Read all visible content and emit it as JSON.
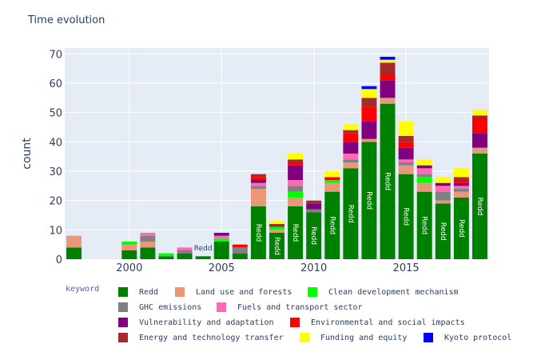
{
  "chart_data": {
    "type": "bar",
    "title": "Time evolution",
    "xlabel": "",
    "ylabel": "count",
    "ylim": [
      0,
      72
    ],
    "xlim": [
      1996.5,
      2019.5
    ],
    "yticks": [
      0,
      10,
      20,
      30,
      40,
      50,
      60,
      70
    ],
    "xticks": [
      2000,
      2005,
      2010,
      2015
    ],
    "grid": true,
    "barmode": "stack",
    "x": [
      1997,
      1998,
      1999,
      2000,
      2001,
      2002,
      2003,
      2004,
      2005,
      2006,
      2007,
      2008,
      2009,
      2010,
      2011,
      2012,
      2013,
      2014,
      2015,
      2016,
      2017,
      2018,
      2019
    ],
    "series": [
      {
        "name": "Redd",
        "color": "#008000",
        "values": [
          4,
          0,
          0,
          3,
          4,
          1,
          2,
          1,
          6,
          2,
          18,
          9,
          18,
          16,
          23,
          31,
          40,
          53,
          29,
          23,
          19,
          21,
          36
        ]
      },
      {
        "name": "Land use and forests",
        "color": "#E9967A",
        "values": [
          4,
          0,
          0,
          2,
          2,
          0,
          0,
          0,
          0,
          0,
          6,
          1,
          3,
          0,
          3,
          2,
          1,
          2,
          3,
          3,
          1,
          2,
          2
        ]
      },
      {
        "name": "Clean development mechanism",
        "color": "#00FF00",
        "values": [
          0,
          0,
          0,
          1,
          0,
          1,
          0,
          0,
          1,
          0,
          0,
          1,
          2,
          0,
          1,
          0,
          0,
          0,
          0,
          2,
          0,
          0,
          0
        ]
      },
      {
        "name": "GHC emissions",
        "color": "#808080",
        "values": [
          0,
          0,
          0,
          0,
          2,
          0,
          1,
          0,
          0,
          2,
          1,
          0,
          2,
          1,
          0,
          1,
          0,
          0,
          1,
          1,
          3,
          1,
          0
        ]
      },
      {
        "name": "Fuels and transport sector",
        "color": "#FF69B4",
        "values": [
          0,
          0,
          0,
          0,
          1,
          0,
          1,
          0,
          1,
          0,
          1,
          0,
          2,
          0,
          0,
          2,
          0,
          0,
          1,
          2,
          2,
          1,
          0
        ]
      },
      {
        "name": "Vulnerability and adaptation",
        "color": "#800080",
        "values": [
          0,
          0,
          0,
          0,
          0,
          0,
          0,
          0,
          1,
          0,
          1,
          0,
          5,
          2,
          0,
          4,
          6,
          6,
          4,
          1,
          1,
          1,
          5
        ]
      },
      {
        "name": "Environmental and social impacts",
        "color": "#FF0000",
        "values": [
          0,
          0,
          0,
          0,
          0,
          0,
          0,
          0,
          0,
          1,
          1,
          0,
          1,
          0,
          1,
          3,
          5,
          2,
          2,
          0,
          0,
          1,
          5
        ]
      },
      {
        "name": "Energy and technology transfer",
        "color": "#A52A2A",
        "values": [
          0,
          0,
          0,
          0,
          0,
          0,
          0,
          0,
          0,
          0,
          1,
          1,
          1,
          1,
          0,
          1,
          3,
          4,
          2,
          0,
          0,
          1,
          1
        ]
      },
      {
        "name": "Funding and equity",
        "color": "#FFFF00",
        "values": [
          0,
          0,
          0,
          0,
          0,
          0,
          0,
          0,
          0,
          0,
          0,
          1,
          2,
          0,
          2,
          2,
          3,
          1,
          5,
          2,
          2,
          3,
          2
        ]
      },
      {
        "name": "Kyoto protocol",
        "color": "#0000FF",
        "values": [
          0,
          0,
          0,
          0,
          0,
          0,
          0,
          0,
          0,
          0,
          0,
          0,
          0,
          0,
          0,
          0,
          1,
          1,
          0,
          0,
          0,
          0,
          0
        ]
      }
    ],
    "annotations": [
      {
        "text": "Redd",
        "x": 2004,
        "y": 3
      }
    ],
    "legend": {
      "title": "keyword",
      "placement": "bottom"
    }
  }
}
